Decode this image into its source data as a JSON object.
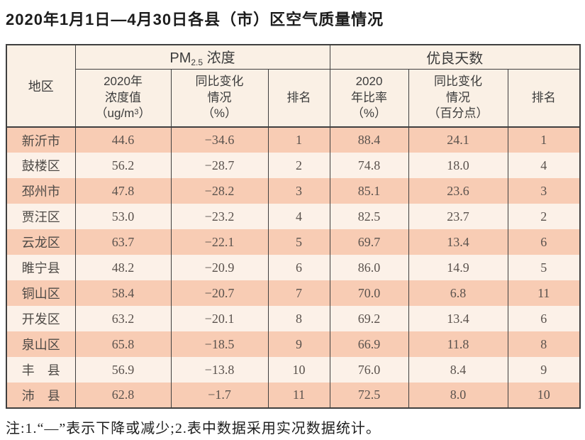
{
  "page": {
    "title": "2020年1月1日—4月30日各县（市）区空气质量情况",
    "note": "注:1.“—”表示下降或减少;2.表中数据采用实况数据统计。"
  },
  "table": {
    "header": {
      "region": "地区",
      "pm25": {
        "base": "PM",
        "sub": "2.5",
        "suffix": " 浓度"
      },
      "good_days": "优良天数",
      "pm_value": {
        "line1": "2020年",
        "line2": "浓度值",
        "unit_pre": "（ug/m",
        "unit_sup": "3",
        "unit_post": "）"
      },
      "pm_change": {
        "line1": "同比变化",
        "line2": "情况",
        "line3": "（%）"
      },
      "pm_rank": "排名",
      "gd_rate": {
        "line1": "2020",
        "line2": "年比率",
        "line3": "（%）"
      },
      "gd_change": {
        "line1": "同比变化",
        "line2": "情况",
        "line3": "（百分点）"
      },
      "gd_rank": "排名"
    },
    "rows": [
      {
        "region": "新沂市",
        "pm_value": "44.6",
        "pm_change": "−34.6",
        "pm_rank": "1",
        "gd_rate": "88.4",
        "gd_change": "24.1",
        "gd_rank": "1"
      },
      {
        "region": "鼓楼区",
        "pm_value": "56.2",
        "pm_change": "−28.7",
        "pm_rank": "2",
        "gd_rate": "74.8",
        "gd_change": "18.0",
        "gd_rank": "4"
      },
      {
        "region": "邳州市",
        "pm_value": "47.8",
        "pm_change": "−28.2",
        "pm_rank": "3",
        "gd_rate": "85.1",
        "gd_change": "23.6",
        "gd_rank": "3"
      },
      {
        "region": "贾汪区",
        "pm_value": "53.0",
        "pm_change": "−23.2",
        "pm_rank": "4",
        "gd_rate": "82.5",
        "gd_change": "23.7",
        "gd_rank": "2"
      },
      {
        "region": "云龙区",
        "pm_value": "63.7",
        "pm_change": "−22.1",
        "pm_rank": "5",
        "gd_rate": "69.7",
        "gd_change": "13.4",
        "gd_rank": "6"
      },
      {
        "region": "睢宁县",
        "pm_value": "48.2",
        "pm_change": "−20.9",
        "pm_rank": "6",
        "gd_rate": "86.0",
        "gd_change": "14.9",
        "gd_rank": "5"
      },
      {
        "region": "铜山区",
        "pm_value": "58.4",
        "pm_change": "−20.7",
        "pm_rank": "7",
        "gd_rate": "70.0",
        "gd_change": "6.8",
        "gd_rank": "11"
      },
      {
        "region": "开发区",
        "pm_value": "63.2",
        "pm_change": "−20.1",
        "pm_rank": "8",
        "gd_rate": "69.2",
        "gd_change": "13.4",
        "gd_rank": "6"
      },
      {
        "region": "泉山区",
        "pm_value": "65.8",
        "pm_change": "−18.5",
        "pm_rank": "9",
        "gd_rate": "66.9",
        "gd_change": "11.8",
        "gd_rank": "8"
      },
      {
        "region": "丰　县",
        "pm_value": "56.9",
        "pm_change": "−13.8",
        "pm_rank": "10",
        "gd_rate": "76.0",
        "gd_change": "8.4",
        "gd_rank": "9"
      },
      {
        "region": "沛　县",
        "pm_value": "62.8",
        "pm_change": "−1.7",
        "pm_rank": "11",
        "gd_rate": "72.5",
        "gd_change": "8.0",
        "gd_rank": "10"
      }
    ],
    "column_keys": [
      "region",
      "pm_value",
      "pm_change",
      "pm_rank",
      "gd_rate",
      "gd_change",
      "gd_rank"
    ]
  },
  "colors": {
    "row_odd": "#f8ccb4",
    "row_even": "#fcf1e8",
    "header_bg": "#faf0e5",
    "border": "#3f3f3f"
  }
}
